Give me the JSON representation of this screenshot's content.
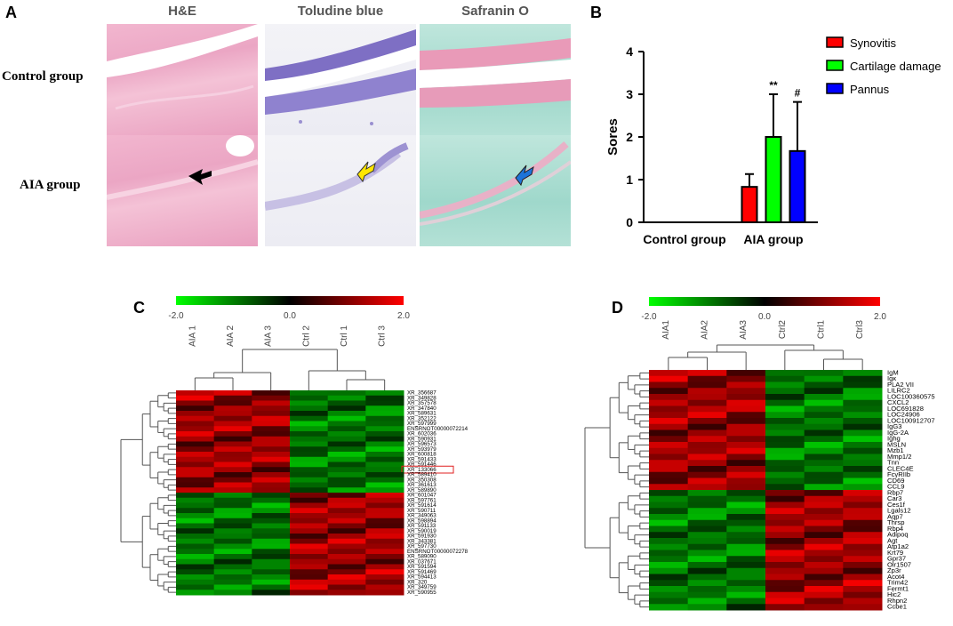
{
  "panels": {
    "a": "A",
    "b": "B",
    "c": "C",
    "d": "D"
  },
  "histology": {
    "columns": [
      "H&E",
      "Toludine blue",
      "Safranin O"
    ],
    "rows": [
      "Control group",
      "AIA group"
    ]
  },
  "chart_data": {
    "type": "bar",
    "categories": [
      "Control group",
      "AIA group"
    ],
    "series": [
      {
        "name": "Synovitis",
        "color": "#ff0000",
        "values": [
          0,
          0.83
        ],
        "errors": [
          0,
          0.3
        ],
        "mark": ""
      },
      {
        "name": "Cartilage damage",
        "color": "#00ff00",
        "values": [
          0,
          2.0
        ],
        "errors": [
          0,
          1.0
        ],
        "mark": "**"
      },
      {
        "name": "Pannus",
        "color": "#0000ff",
        "values": [
          0,
          1.67
        ],
        "errors": [
          0,
          1.15
        ],
        "mark": "#"
      }
    ],
    "ylabel": "Sores",
    "ylim": [
      0,
      4
    ],
    "yticks": [
      "0",
      "1",
      "2",
      "3",
      "4"
    ]
  },
  "heatmap_c": {
    "scale_labels": [
      "-2.0",
      "0.0",
      "2.0"
    ],
    "columns": [
      "AIA 1",
      "AIA 2",
      "AIA 3",
      "Ctrl 2",
      "Ctrl 1",
      "Ctrl 3"
    ],
    "genes": [
      "XR_356687",
      "XR_349828",
      "XR_357578",
      "XR_347840",
      "XR_589631",
      "XR_352122",
      "XR_597999",
      "ENSRNOT00000072214",
      "XR_602036",
      "XR_590931",
      "XR_596573",
      "XR_593979",
      "XR_600818",
      "XR_591433",
      "XR_591446",
      "XR_133066",
      "XR_589410",
      "XR_350308",
      "XR_361613",
      "XR_589890",
      "XR_601047",
      "XR_597761",
      "XR_591614",
      "XR_590711",
      "XR_349063",
      "XR_598894",
      "XR_591133",
      "XR_590019",
      "XR_591930",
      "XR_343381",
      "XR_597730",
      "ENSRNOT00000072278",
      "XR_589090",
      "XR_037671",
      "XR_591594",
      "XR_591469",
      "XR_594413",
      "XR_320",
      "XR_349759",
      "XR_590955"
    ],
    "highlighted_gene": "XR_133066"
  },
  "heatmap_d": {
    "scale_labels": [
      "-2.0",
      "0.0",
      "2.0"
    ],
    "columns": [
      "AIA1",
      "AIA2",
      "AIA3",
      "Ctrl2",
      "Ctrl1",
      "Ctrl3"
    ],
    "genes": [
      "IgM",
      "Igκ",
      "PLA2 VII",
      "LILRC2",
      "LOC100360575",
      "CXCL2",
      "LOC691828",
      "LOC24906",
      "LOC100912707",
      "IgG3",
      "IgG-2A",
      "Ighg",
      "MSLN",
      "Mzb1",
      "Mmp1/2",
      "Tnn",
      "CLEC4E",
      "FcγRIIb",
      "CD69",
      "CCL9",
      "Rbp7",
      "Car3",
      "Ces1f",
      "Lgals12",
      "Aqp7",
      "Thrsp",
      "Rbp4",
      "Adipoq",
      "Agt",
      "Atp1a2",
      "Krt79",
      "Gpr37",
      "Olr1507",
      "Zp3r",
      "Acot4",
      "Trim42",
      "Fermt1",
      "Hic2",
      "Rhpn2",
      "Ccbe1"
    ]
  }
}
